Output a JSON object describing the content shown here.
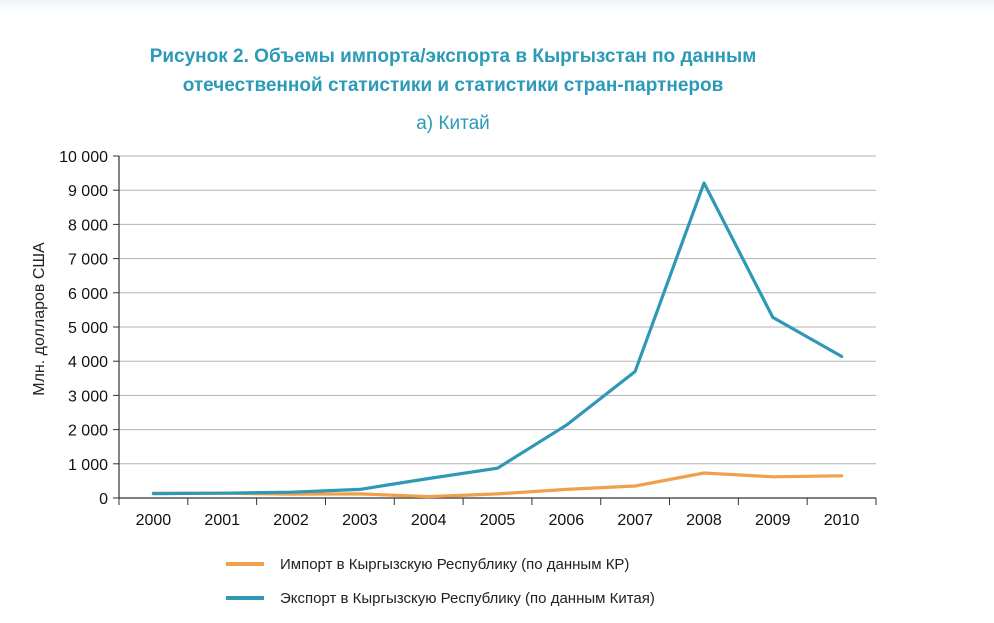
{
  "chart_data": {
    "type": "line",
    "title_line1": "Рисунок 2. Объемы импорта/экспорта в Кыргызстан по данным",
    "title_line2": "отечественной статистики и статистики стран-партнеров",
    "subtitle": "а) Китай",
    "ylabel": "Млн. долларов США",
    "xlabel": "",
    "categories": [
      "2000",
      "2001",
      "2002",
      "2003",
      "2004",
      "2005",
      "2006",
      "2007",
      "2008",
      "2009",
      "2010"
    ],
    "y_ticks": [
      0,
      1000,
      2000,
      3000,
      4000,
      5000,
      6000,
      7000,
      8000,
      9000,
      10000
    ],
    "y_tick_labels": [
      "0",
      "1 000",
      "2 000",
      "3 000",
      "4 000",
      "5 000",
      "6 000",
      "7 000",
      "8 000",
      "9 000",
      "10 000"
    ],
    "ylim": [
      0,
      10000
    ],
    "grid": true,
    "legend_position": "bottom",
    "series": [
      {
        "name": "Импорт в Кыргызскую Республику (по данным КР)",
        "color": "#f0a04b",
        "values": [
          140,
          140,
          110,
          120,
          40,
          120,
          250,
          350,
          730,
          620,
          650
        ]
      },
      {
        "name": "Экспорт в Кыргызскую Республику (по данным Китая)",
        "color": "#2f98b5",
        "values": [
          130,
          140,
          170,
          250,
          570,
          870,
          2130,
          3700,
          9210,
          5280,
          4140
        ]
      }
    ]
  }
}
